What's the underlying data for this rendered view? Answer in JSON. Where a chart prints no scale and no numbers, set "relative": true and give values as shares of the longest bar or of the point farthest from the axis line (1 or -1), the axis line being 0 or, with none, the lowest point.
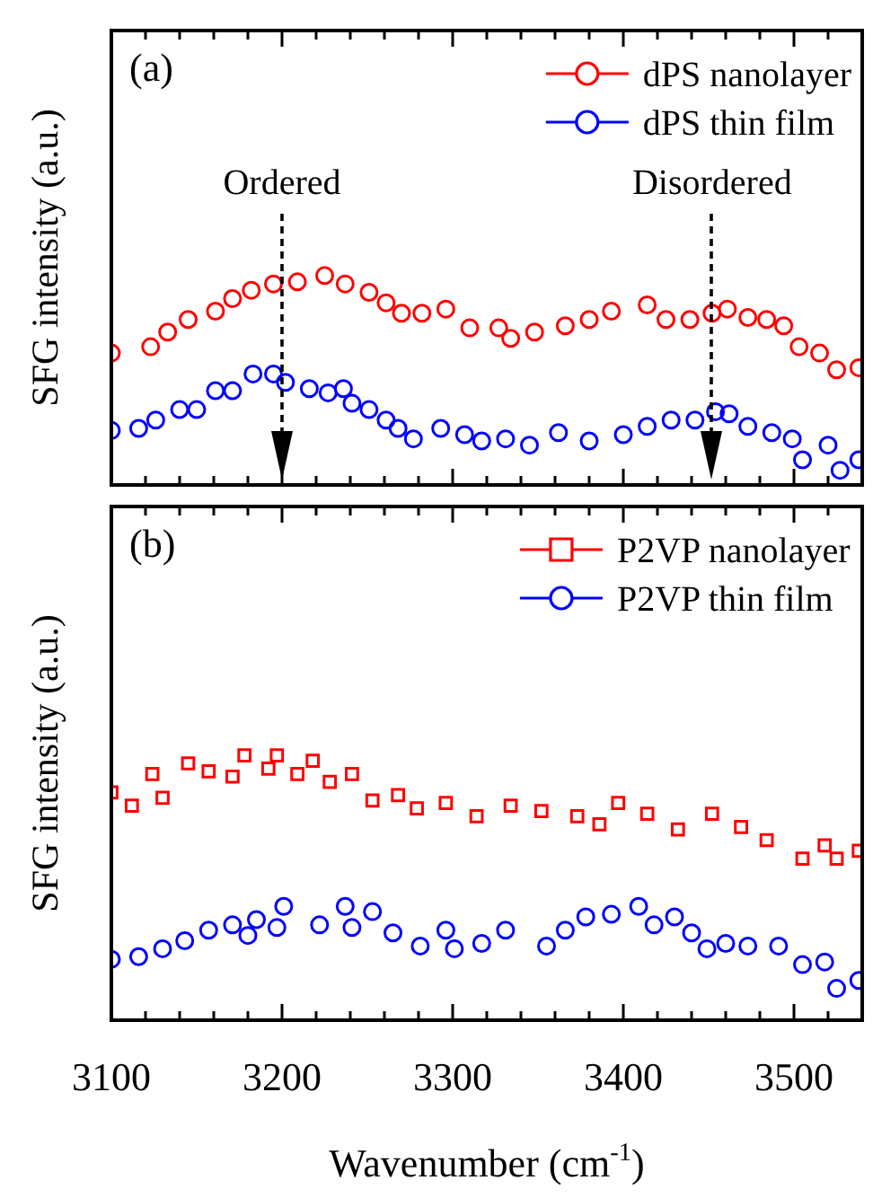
{
  "chart_data": [
    {
      "type": "scatter",
      "relative": true,
      "ylabel": "SFG intensity (a.u.)",
      "xlim": [
        3100,
        3540
      ],
      "xticks": [
        {
          "value": 3100,
          "label": null
        },
        {
          "value": 3120,
          "label": null
        },
        {
          "value": 3140,
          "label": null
        },
        {
          "value": 3160,
          "label": null
        },
        {
          "value": 3180,
          "label": null
        },
        {
          "value": 3200,
          "label": null
        },
        {
          "value": 3220,
          "label": null
        },
        {
          "value": 3240,
          "label": null
        },
        {
          "value": 3260,
          "label": null
        },
        {
          "value": 3280,
          "label": null
        },
        {
          "value": 3300,
          "label": null
        },
        {
          "value": 3320,
          "label": null
        },
        {
          "value": 3340,
          "label": null
        },
        {
          "value": 3360,
          "label": null
        },
        {
          "value": 3380,
          "label": null
        },
        {
          "value": 3400,
          "label": null
        },
        {
          "value": 3420,
          "label": null
        },
        {
          "value": 3440,
          "label": null
        },
        {
          "value": 3460,
          "label": null
        },
        {
          "value": 3480,
          "label": null
        },
        {
          "value": 3500,
          "label": null
        },
        {
          "value": 3520,
          "label": null
        }
      ],
      "tick_labels": false,
      "legend": "top right",
      "marker": "circle",
      "grid": false,
      "annotations": [
        "(a)"
      ],
      "ref_lines": [
        {
          "axis": "x",
          "value": 3200,
          "label": "Ordered",
          "line_style": "dashed"
        },
        {
          "axis": "x",
          "value": 3452,
          "label": "Disordered",
          "line_style": "dashed"
        }
      ],
      "series": [
        {
          "name": "dPS nanolayer",
          "color": "#ff0000",
          "x": [
            3100,
            3123,
            3133,
            3145,
            3161,
            3171,
            3182,
            3195,
            3209,
            3225,
            3237,
            3251,
            3261,
            3270,
            3282,
            3296,
            3310,
            3327,
            3334,
            3348,
            3366,
            3380,
            3393,
            3414,
            3425,
            3439,
            3452,
            3461,
            3473,
            3484,
            3494,
            3503,
            3515,
            3525,
            3538
          ],
          "values": [
            0.63,
            0.66,
            0.73,
            0.79,
            0.83,
            0.89,
            0.93,
            0.96,
            0.97,
            1.0,
            0.96,
            0.92,
            0.87,
            0.82,
            0.82,
            0.84,
            0.75,
            0.75,
            0.7,
            0.73,
            0.76,
            0.79,
            0.83,
            0.86,
            0.79,
            0.79,
            0.82,
            0.84,
            0.8,
            0.79,
            0.76,
            0.66,
            0.63,
            0.55,
            0.56
          ]
        },
        {
          "name": "dPS thin film",
          "color": "#0000ff",
          "x": [
            3100,
            3116,
            3126,
            3140,
            3150,
            3161,
            3171,
            3183,
            3195,
            3202,
            3216,
            3227,
            3236,
            3241,
            3251,
            3261,
            3268,
            3277,
            3293,
            3307,
            3317,
            3331,
            3345,
            3362,
            3380,
            3400,
            3414,
            3428,
            3442,
            3454,
            3462,
            3473,
            3487,
            3499,
            3505,
            3520,
            3527,
            3538
          ],
          "values": [
            0.26,
            0.27,
            0.31,
            0.36,
            0.36,
            0.45,
            0.45,
            0.53,
            0.53,
            0.49,
            0.46,
            0.44,
            0.46,
            0.39,
            0.36,
            0.31,
            0.27,
            0.22,
            0.27,
            0.24,
            0.21,
            0.22,
            0.19,
            0.25,
            0.21,
            0.24,
            0.28,
            0.31,
            0.31,
            0.35,
            0.34,
            0.28,
            0.25,
            0.22,
            0.12,
            0.19,
            0.07,
            0.12
          ]
        }
      ]
    },
    {
      "type": "scatter",
      "relative": true,
      "ylabel": "SFG intensity (a.u.)",
      "xlabel": "Wavenumber (cm$^{-1}$)",
      "xlim": [
        3100,
        3540
      ],
      "xticks": [
        3100,
        {
          "value": 3120,
          "label": null
        },
        {
          "value": 3140,
          "label": null
        },
        {
          "value": 3160,
          "label": null
        },
        {
          "value": 3180,
          "label": null
        },
        3200,
        {
          "value": 3220,
          "label": null
        },
        {
          "value": 3240,
          "label": null
        },
        {
          "value": 3260,
          "label": null
        },
        {
          "value": 3280,
          "label": null
        },
        3300,
        {
          "value": 3320,
          "label": null
        },
        {
          "value": 3340,
          "label": null
        },
        {
          "value": 3360,
          "label": null
        },
        {
          "value": 3380,
          "label": null
        },
        3400,
        {
          "value": 3420,
          "label": null
        },
        {
          "value": 3440,
          "label": null
        },
        {
          "value": 3460,
          "label": null
        },
        {
          "value": 3480,
          "label": null
        },
        3500,
        {
          "value": 3520,
          "label": null
        }
      ],
      "tick_labels": "x",
      "legend": "top right",
      "grid": false,
      "annotations": [
        "(b)"
      ],
      "series": [
        {
          "name": "P2VP nanolayer",
          "color": "#ff0000",
          "marker": "square",
          "x": [
            3100,
            3112,
            3124,
            3130,
            3145,
            3157,
            3171,
            3178,
            3192,
            3197,
            3209,
            3218,
            3228,
            3241,
            3253,
            3268,
            3279,
            3296,
            3314,
            3334,
            3352,
            3373,
            3386,
            3397,
            3414,
            3432,
            3452,
            3469,
            3484,
            3505,
            3518,
            3525,
            3538
          ],
          "values": [
            0.86,
            0.81,
            0.93,
            0.84,
            0.97,
            0.94,
            0.92,
            1.0,
            0.95,
            1.0,
            0.93,
            0.98,
            0.9,
            0.93,
            0.83,
            0.85,
            0.8,
            0.82,
            0.77,
            0.81,
            0.79,
            0.77,
            0.74,
            0.82,
            0.78,
            0.72,
            0.78,
            0.73,
            0.68,
            0.61,
            0.66,
            0.61,
            0.64
          ]
        },
        {
          "name": "P2VP thin film",
          "color": "#0000ff",
          "marker": "circle",
          "x": [
            3100,
            3116,
            3130,
            3143,
            3157,
            3171,
            3180,
            3185,
            3197,
            3201,
            3222,
            3237,
            3241,
            3253,
            3265,
            3281,
            3296,
            3301,
            3317,
            3331,
            3355,
            3366,
            3378,
            3393,
            3409,
            3418,
            3430,
            3440,
            3449,
            3460,
            3473,
            3491,
            3505,
            3518,
            3525,
            3538
          ],
          "values": [
            0.23,
            0.24,
            0.27,
            0.3,
            0.34,
            0.36,
            0.32,
            0.38,
            0.35,
            0.43,
            0.36,
            0.43,
            0.35,
            0.41,
            0.33,
            0.28,
            0.34,
            0.27,
            0.29,
            0.34,
            0.28,
            0.34,
            0.39,
            0.4,
            0.43,
            0.36,
            0.39,
            0.33,
            0.27,
            0.29,
            0.28,
            0.28,
            0.21,
            0.22,
            0.12,
            0.15
          ]
        }
      ]
    }
  ]
}
